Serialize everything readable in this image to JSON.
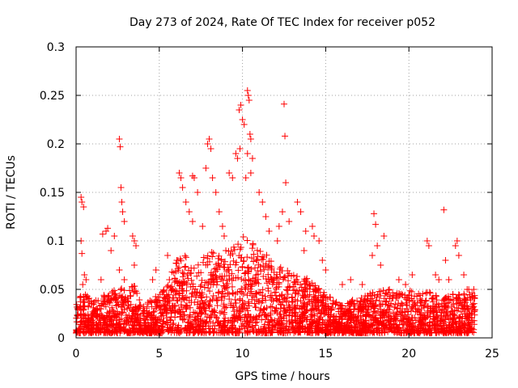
{
  "chart_data": {
    "type": "scatter",
    "title": "Day 273 of 2024, Rate Of TEC Index for receiver p052",
    "xlabel": "GPS time / hours",
    "ylabel": "ROTI / TECUs",
    "xlim": [
      0,
      25
    ],
    "ylim": [
      0,
      0.3
    ],
    "x_ticks": [
      0,
      5,
      10,
      15,
      20,
      25
    ],
    "x_tick_labels": [
      "0",
      "5",
      "10",
      "15",
      "20",
      "25"
    ],
    "y_ticks": [
      0,
      0.05,
      0.1,
      0.15,
      0.2,
      0.25,
      0.3
    ],
    "y_tick_labels": [
      "0",
      "0.05",
      "0.1",
      "0.15",
      "0.2",
      "0.25",
      "0.3"
    ],
    "grid": true,
    "marker": "+",
    "series": [
      {
        "name": "ROTI",
        "color": "#ff0000",
        "points": [
          [
            0.3,
            0.145
          ],
          [
            0.35,
            0.14
          ],
          [
            0.45,
            0.135
          ],
          [
            0.3,
            0.1
          ],
          [
            0.35,
            0.087
          ],
          [
            0.5,
            0.065
          ],
          [
            0.6,
            0.06
          ],
          [
            0.4,
            0.055
          ],
          [
            1.6,
            0.107
          ],
          [
            1.8,
            0.11
          ],
          [
            1.9,
            0.113
          ],
          [
            2.1,
            0.09
          ],
          [
            2.6,
            0.205
          ],
          [
            2.65,
            0.197
          ],
          [
            2.7,
            0.155
          ],
          [
            2.75,
            0.14
          ],
          [
            2.8,
            0.13
          ],
          [
            2.9,
            0.12
          ],
          [
            2.3,
            0.105
          ],
          [
            3.4,
            0.105
          ],
          [
            3.5,
            0.1
          ],
          [
            3.6,
            0.095
          ],
          [
            3.5,
            0.075
          ],
          [
            2.6,
            0.07
          ],
          [
            2.9,
            0.06
          ],
          [
            1.5,
            0.06
          ],
          [
            4.6,
            0.06
          ],
          [
            4.8,
            0.07
          ],
          [
            5.5,
            0.085
          ],
          [
            6.2,
            0.17
          ],
          [
            6.3,
            0.165
          ],
          [
            6.4,
            0.155
          ],
          [
            6.6,
            0.14
          ],
          [
            6.8,
            0.13
          ],
          [
            7.0,
            0.167
          ],
          [
            7.1,
            0.165
          ],
          [
            7.3,
            0.15
          ],
          [
            7.0,
            0.12
          ],
          [
            7.6,
            0.115
          ],
          [
            7.9,
            0.2
          ],
          [
            8.0,
            0.205
          ],
          [
            8.1,
            0.195
          ],
          [
            7.8,
            0.175
          ],
          [
            8.2,
            0.165
          ],
          [
            8.4,
            0.15
          ],
          [
            8.6,
            0.13
          ],
          [
            8.8,
            0.115
          ],
          [
            8.9,
            0.105
          ],
          [
            9.0,
            0.09
          ],
          [
            9.2,
            0.17
          ],
          [
            9.4,
            0.165
          ],
          [
            9.6,
            0.19
          ],
          [
            9.7,
            0.185
          ],
          [
            9.8,
            0.235
          ],
          [
            9.9,
            0.24
          ],
          [
            10.0,
            0.225
          ],
          [
            10.1,
            0.22
          ],
          [
            9.85,
            0.195
          ],
          [
            10.3,
            0.255
          ],
          [
            10.35,
            0.25
          ],
          [
            10.4,
            0.245
          ],
          [
            10.45,
            0.21
          ],
          [
            10.5,
            0.205
          ],
          [
            10.3,
            0.19
          ],
          [
            10.6,
            0.185
          ],
          [
            10.5,
            0.17
          ],
          [
            10.2,
            0.165
          ],
          [
            11.0,
            0.15
          ],
          [
            11.2,
            0.14
          ],
          [
            11.4,
            0.125
          ],
          [
            11.6,
            0.11
          ],
          [
            12.1,
            0.1
          ],
          [
            12.2,
            0.115
          ],
          [
            12.5,
            0.241
          ],
          [
            12.55,
            0.208
          ],
          [
            12.6,
            0.16
          ],
          [
            12.4,
            0.13
          ],
          [
            12.8,
            0.12
          ],
          [
            13.3,
            0.14
          ],
          [
            13.5,
            0.13
          ],
          [
            13.8,
            0.11
          ],
          [
            14.2,
            0.115
          ],
          [
            14.3,
            0.105
          ],
          [
            13.7,
            0.09
          ],
          [
            14.6,
            0.1
          ],
          [
            14.8,
            0.08
          ],
          [
            15.0,
            0.07
          ],
          [
            16.0,
            0.055
          ],
          [
            16.5,
            0.06
          ],
          [
            17.2,
            0.055
          ],
          [
            17.9,
            0.128
          ],
          [
            18.0,
            0.117
          ],
          [
            18.1,
            0.095
          ],
          [
            17.8,
            0.085
          ],
          [
            18.5,
            0.105
          ],
          [
            18.3,
            0.075
          ],
          [
            19.4,
            0.06
          ],
          [
            19.8,
            0.055
          ],
          [
            20.2,
            0.065
          ],
          [
            21.1,
            0.1
          ],
          [
            21.2,
            0.095
          ],
          [
            21.6,
            0.065
          ],
          [
            21.8,
            0.06
          ],
          [
            22.1,
            0.132
          ],
          [
            22.2,
            0.08
          ],
          [
            22.4,
            0.06
          ],
          [
            22.8,
            0.095
          ],
          [
            22.9,
            0.1
          ],
          [
            23.0,
            0.085
          ],
          [
            23.3,
            0.065
          ],
          [
            23.5,
            0.05
          ],
          [
            23.9,
            0.05
          ]
        ],
        "density_envelope": [
          [
            0,
            0.03
          ],
          [
            0.5,
            0.045
          ],
          [
            1,
            0.03
          ],
          [
            1.5,
            0.04
          ],
          [
            2,
            0.04
          ],
          [
            2.5,
            0.05
          ],
          [
            3,
            0.045
          ],
          [
            3.5,
            0.05
          ],
          [
            4,
            0.03
          ],
          [
            4.5,
            0.035
          ],
          [
            5,
            0.04
          ],
          [
            5.5,
            0.05
          ],
          [
            6,
            0.075
          ],
          [
            6.5,
            0.085
          ],
          [
            7,
            0.07
          ],
          [
            7.5,
            0.075
          ],
          [
            8,
            0.085
          ],
          [
            8.5,
            0.085
          ],
          [
            9,
            0.08
          ],
          [
            9.5,
            0.095
          ],
          [
            10,
            0.1
          ],
          [
            10.5,
            0.095
          ],
          [
            11,
            0.085
          ],
          [
            11.5,
            0.08
          ],
          [
            12,
            0.07
          ],
          [
            12.5,
            0.07
          ],
          [
            13,
            0.06
          ],
          [
            13.5,
            0.06
          ],
          [
            14,
            0.055
          ],
          [
            14.5,
            0.05
          ],
          [
            15,
            0.04
          ],
          [
            15.5,
            0.035
          ],
          [
            16,
            0.03
          ],
          [
            16.5,
            0.035
          ],
          [
            17,
            0.035
          ],
          [
            17.5,
            0.04
          ],
          [
            18,
            0.045
          ],
          [
            18.5,
            0.045
          ],
          [
            19,
            0.045
          ],
          [
            19.5,
            0.04
          ],
          [
            20,
            0.045
          ],
          [
            20.5,
            0.04
          ],
          [
            21,
            0.045
          ],
          [
            21.5,
            0.04
          ],
          [
            22,
            0.035
          ],
          [
            22.5,
            0.04
          ],
          [
            23,
            0.04
          ],
          [
            23.5,
            0.045
          ],
          [
            24,
            0.045
          ]
        ]
      }
    ]
  }
}
